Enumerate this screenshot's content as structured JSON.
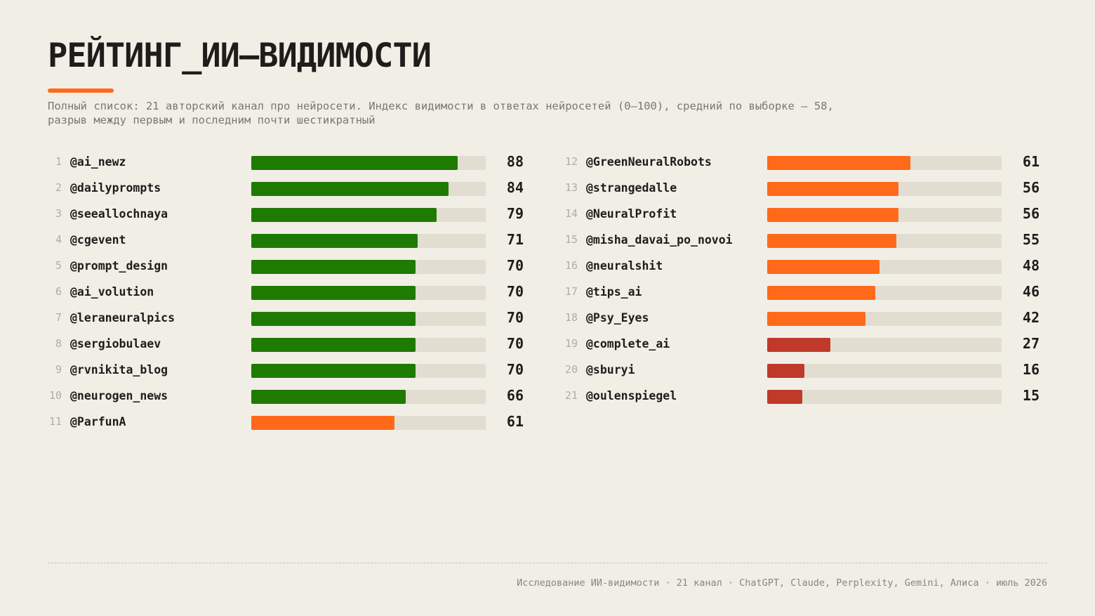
{
  "page": {
    "title": "РЕЙТИНГ_ИИ–ВИДИМОСТИ",
    "subtitle": "Полный список: 21 авторский канал про нейросети. Индекс видимости в ответах нейросетей (0–100), средний по выборке — 58, разрыв между первым и последним почти шестикратный",
    "footer": "Исследование ИИ-видимости · 21 канал · ChatGPT, Claude, Perplexity, Gemini, Алиса · июль 2026"
  },
  "colors": {
    "accent": "#ff6a1a",
    "high": "#1f7a00",
    "mid": "#ff6a1a",
    "low": "#c0392b",
    "track": "#e2ddd1"
  },
  "chart_data": {
    "type": "bar",
    "orientation": "horizontal",
    "xlim": [
      0,
      100
    ],
    "categories": [
      "@ai_newz",
      "@dailyprompts",
      "@seeallochnaya",
      "@cgevent",
      "@prompt_design",
      "@ai_volution",
      "@leraneuralpics",
      "@sergiobulaev",
      "@rvnikita_blog",
      "@neurogen_news",
      "@ParfunA",
      "@GreenNeuralRobots",
      "@strangedalle",
      "@NeuralProfit",
      "@misha_davai_po_novoi",
      "@neuralshit",
      "@tips_ai",
      "@Psy_Eyes",
      "@complete_ai",
      "@sburyi",
      "@oulenspiegel"
    ],
    "ranks": [
      "1",
      "2",
      "3",
      "4",
      "5",
      "6",
      "7",
      "8",
      "9",
      "10",
      "11",
      "12",
      "13",
      "14",
      "15",
      "16",
      "17",
      "18",
      "19",
      "20",
      "21"
    ],
    "values": [
      88,
      84,
      79,
      71,
      70,
      70,
      70,
      70,
      70,
      66,
      61,
      61,
      56,
      56,
      55,
      48,
      46,
      42,
      27,
      16,
      15
    ],
    "value_labels": [
      "88",
      "84",
      "79",
      "71",
      "70",
      "70",
      "70",
      "70",
      "70",
      "66",
      "61",
      "61",
      "56",
      "56",
      "55",
      "48",
      "46",
      "42",
      "27",
      "16",
      "15"
    ],
    "color_groups": [
      "high",
      "high",
      "high",
      "high",
      "high",
      "high",
      "high",
      "high",
      "high",
      "high",
      "mid",
      "mid",
      "mid",
      "mid",
      "mid",
      "mid",
      "mid",
      "mid",
      "low",
      "low",
      "low"
    ]
  }
}
